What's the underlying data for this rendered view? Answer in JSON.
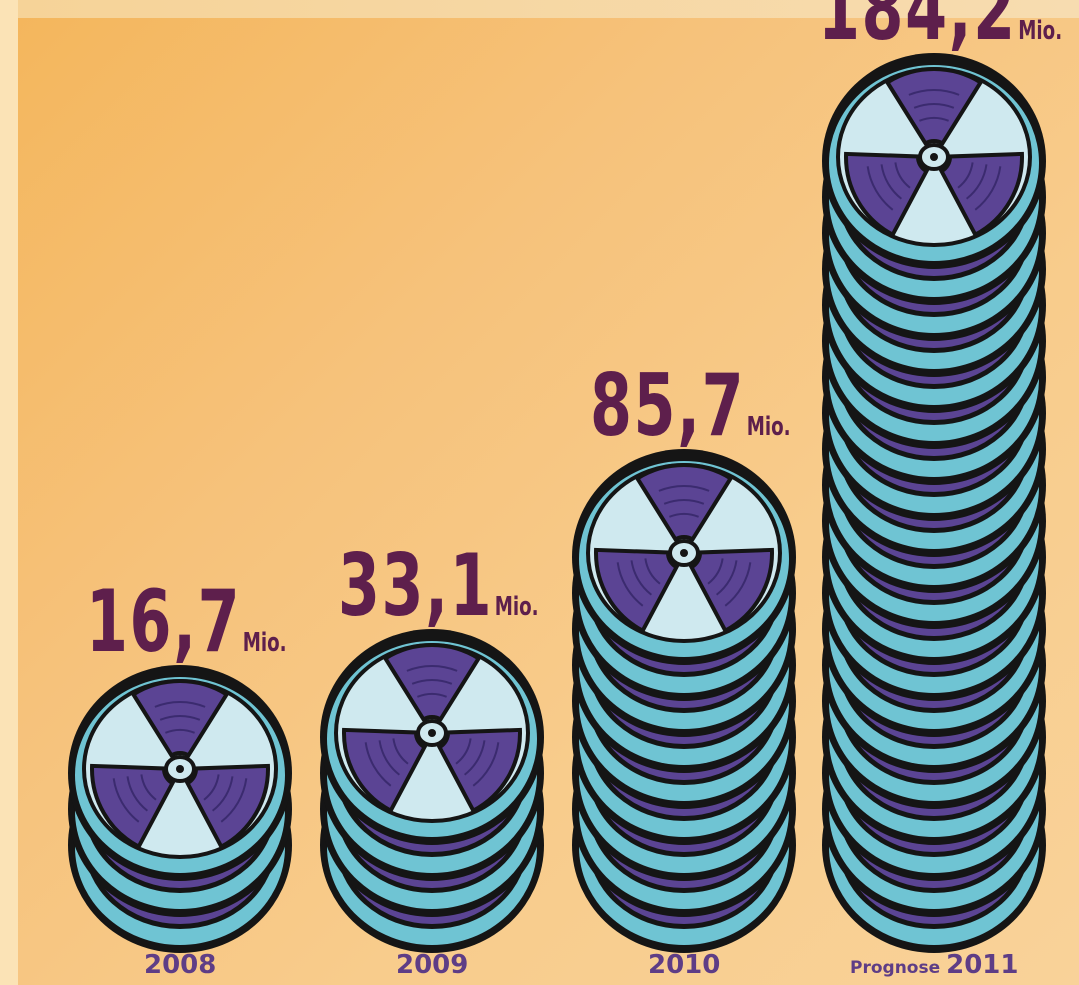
{
  "chart_data": {
    "type": "bar",
    "categories": [
      "2008",
      "2009",
      "2010",
      "2011"
    ],
    "category_prefixes": [
      "",
      "",
      "",
      "Prognose"
    ],
    "values": [
      16.7,
      33.1,
      85.7,
      184.2
    ],
    "value_labels": [
      "16,7",
      "33,1",
      "85,7",
      "184,2"
    ],
    "unit": "Mio.",
    "mark": "stacked-disc-icons",
    "disc_counts": [
      3,
      4,
      9,
      20
    ],
    "colors": {
      "value_text": "#5e1f4c",
      "year_text": "#5e3d86",
      "disc_top": "#cfe9ef",
      "disc_blade": "#5b4494",
      "disc_rim": "#6fc4d3",
      "disc_outline": "#151515",
      "disc_accent": "#f2a766"
    }
  }
}
